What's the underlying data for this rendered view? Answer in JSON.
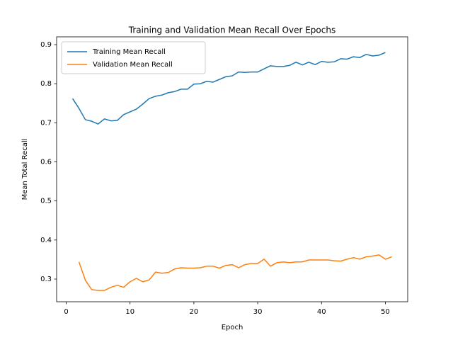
{
  "chart_data": {
    "type": "line",
    "title": "Training and Validation Mean Recall Over Epochs",
    "x_label": "Epoch",
    "y_label": "Mean Total Recall",
    "x": [
      1,
      2,
      3,
      4,
      5,
      6,
      7,
      8,
      9,
      10,
      11,
      12,
      13,
      14,
      15,
      16,
      17,
      18,
      19,
      20,
      21,
      22,
      23,
      24,
      25,
      26,
      27,
      28,
      29,
      30,
      31,
      32,
      33,
      34,
      35,
      36,
      37,
      38,
      39,
      40,
      41,
      42,
      43,
      44,
      45,
      46,
      47,
      48,
      49,
      50,
      51
    ],
    "series": [
      {
        "name": "Training Mean Recall",
        "color": "#1f77b4",
        "values": [
          0.762,
          0.737,
          0.708,
          0.704,
          0.697,
          0.71,
          0.705,
          0.706,
          0.721,
          0.728,
          0.735,
          0.748,
          0.762,
          0.768,
          0.771,
          0.777,
          0.78,
          0.786,
          0.786,
          0.799,
          0.8,
          0.806,
          0.804,
          0.811,
          0.818,
          0.82,
          0.83,
          0.829,
          0.83,
          0.83,
          0.838,
          0.846,
          0.844,
          0.844,
          0.847,
          0.855,
          0.848,
          0.855,
          0.849,
          0.857,
          0.855,
          0.856,
          0.864,
          0.863,
          0.869,
          0.867,
          0.875,
          0.871,
          0.873,
          0.88,
          null
        ]
      },
      {
        "name": "Validation Mean Recall",
        "color": "#ff7f0e",
        "values": [
          null,
          0.344,
          0.297,
          0.273,
          0.271,
          0.271,
          0.279,
          0.284,
          0.279,
          0.293,
          0.302,
          0.293,
          0.298,
          0.318,
          0.315,
          0.317,
          0.326,
          0.329,
          0.328,
          0.328,
          0.329,
          0.333,
          0.333,
          0.328,
          0.335,
          0.337,
          0.329,
          0.337,
          0.34,
          0.34,
          0.351,
          0.333,
          0.342,
          0.344,
          0.342,
          0.344,
          0.344,
          0.349,
          0.349,
          0.349,
          0.349,
          0.347,
          0.346,
          0.351,
          0.355,
          0.351,
          0.357,
          0.359,
          0.362,
          0.351,
          0.357
        ]
      }
    ],
    "xlim": [
      -1.5,
      53.5
    ],
    "xticks": [
      0,
      10,
      20,
      30,
      40,
      50
    ],
    "ylim": [
      0.242,
      0.92
    ],
    "yticks": [
      0.3,
      0.4,
      0.5,
      0.6,
      0.7,
      0.8,
      0.9
    ],
    "grid": false,
    "legend": "upper left"
  }
}
